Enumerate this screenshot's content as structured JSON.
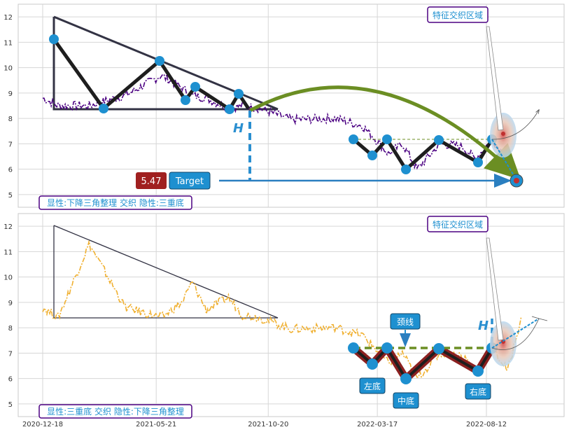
{
  "chart_data": [
    {
      "type": "line",
      "panel": "top",
      "ylim": [
        4.5,
        12.5
      ],
      "yticks": [
        "5",
        "6",
        "7",
        "8",
        "9",
        "10",
        "11",
        "12"
      ],
      "x": [
        "2020-12-18",
        "2021-01-08",
        "2021-02-19",
        "2021-04-09",
        "2021-05-28",
        "2021-06-25",
        "2021-07-09",
        "2021-07-28",
        "2021-08-27",
        "2021-09-15",
        "2021-10-08",
        "2021-11-20",
        "2022-01-20",
        "2022-02-25",
        "2022-03-17",
        "2022-04-01",
        "2022-04-20",
        "2022-05-10",
        "2022-06-10",
        "2022-07-10",
        "2022-07-28",
        "2022-08-20",
        "2022-09-10",
        "2022-09-28"
      ],
      "series": [
        {
          "color": "#4b0082",
          "values": [
            8.8,
            8.5,
            8.5,
            8.9,
            9.7,
            9.2,
            8.9,
            8.8,
            8.4,
            8.5,
            8.4,
            7.95,
            8.0,
            7.7,
            7.1,
            6.6,
            7.0,
            6.0,
            7.0,
            6.9,
            6.4,
            7.2,
            6.3,
            5.5
          ]
        }
      ],
      "labels": {
        "price_value": "5.47",
        "target_label": "Target",
        "height_marker": "H",
        "zone_label": "特征交织区域",
        "pattern_caption": "显性:下降三角整理 交织 隐性:三重底"
      },
      "colors": {
        "triangle": "#333344",
        "pivot": "#1e90d0",
        "arc": "#6b8e23",
        "price_box": "#a02020",
        "target_box": "#1e90d0"
      }
    },
    {
      "type": "line",
      "panel": "bottom",
      "ylim": [
        4.5,
        12.5
      ],
      "yticks": [
        "5",
        "6",
        "7",
        "8",
        "9",
        "10",
        "11",
        "12"
      ],
      "xticks": [
        "2020-12-18",
        "2021-05-21",
        "2021-10-20",
        "2022-03-17",
        "2022-08-12"
      ],
      "series": [
        {
          "color": "#f0b030",
          "values": [
            8.8,
            8.4,
            11.3,
            8.8,
            8.4,
            9.0,
            9.8,
            8.7,
            9.2,
            8.5,
            8.4,
            7.95,
            8.0,
            7.7,
            7.1,
            6.6,
            7.0,
            6.0,
            7.0,
            6.9,
            6.4,
            7.2,
            6.3,
            8.4
          ]
        }
      ],
      "labels": {
        "neckline": "颈线",
        "left_bottom": "左底",
        "middle_bottom": "中底",
        "right_bottom": "右底",
        "height_marker": "H",
        "zone_label": "特征交织区域",
        "pattern_caption": "显性:三重底 交织 隐性:下降三角整理"
      },
      "colors": {
        "triangle": "#333344",
        "pivot": "#1e90d0",
        "neckline": "#6b8e23",
        "bottom_band": "#8b2020"
      }
    }
  ]
}
